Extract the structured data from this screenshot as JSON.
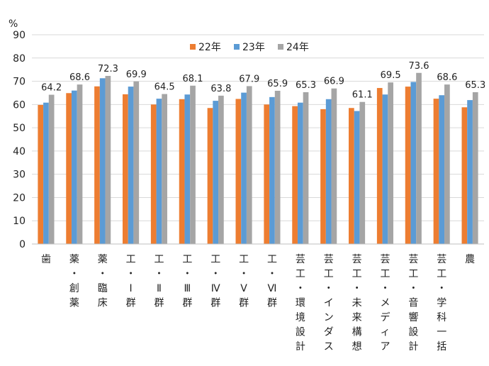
{
  "chart_data": {
    "type": "bar",
    "unit_label": "%",
    "ylim": [
      0,
      90
    ],
    "yticks": [
      0,
      10,
      20,
      30,
      40,
      50,
      60,
      70,
      80,
      90
    ],
    "grid": true,
    "legend_position": "top",
    "categories": [
      "歯",
      "薬・創薬",
      "薬・臨床",
      "工・Ⅰ群",
      "工・Ⅱ群",
      "工・Ⅲ群",
      "工・Ⅳ群",
      "工・Ⅴ群",
      "工・Ⅵ群",
      "芸工・環境設計",
      "芸工・インダス",
      "芸工・未来構想",
      "芸工・メディア",
      "芸工・音響設計",
      "芸工・学科一括",
      "農"
    ],
    "series": [
      {
        "name": "22年",
        "color": "#ED7D31",
        "values": [
          59.8,
          64.9,
          67.8,
          64.4,
          60.0,
          62.3,
          58.5,
          62.4,
          60.0,
          59.3,
          58.0,
          58.5,
          67.1,
          67.7,
          62.5,
          58.8
        ]
      },
      {
        "name": "23年",
        "color": "#5B9BD5",
        "values": [
          60.8,
          66.0,
          71.3,
          67.7,
          62.5,
          64.3,
          61.6,
          65.1,
          63.2,
          60.8,
          62.3,
          57.2,
          64.3,
          69.7,
          64.0,
          61.9
        ]
      },
      {
        "name": "24年",
        "color": "#A5A5A5",
        "values": [
          64.2,
          68.6,
          72.3,
          69.9,
          64.5,
          68.1,
          63.8,
          67.9,
          65.9,
          65.3,
          66.9,
          61.1,
          69.5,
          73.6,
          68.6,
          65.3
        ]
      }
    ],
    "data_labels": [
      "64.2",
      "68.6",
      "72.3",
      "69.9",
      "64.5",
      "68.1",
      "63.8",
      "67.9",
      "65.9",
      "65.3",
      "66.9",
      "61.1",
      "69.5",
      "73.6",
      "68.6",
      "65.3"
    ]
  }
}
